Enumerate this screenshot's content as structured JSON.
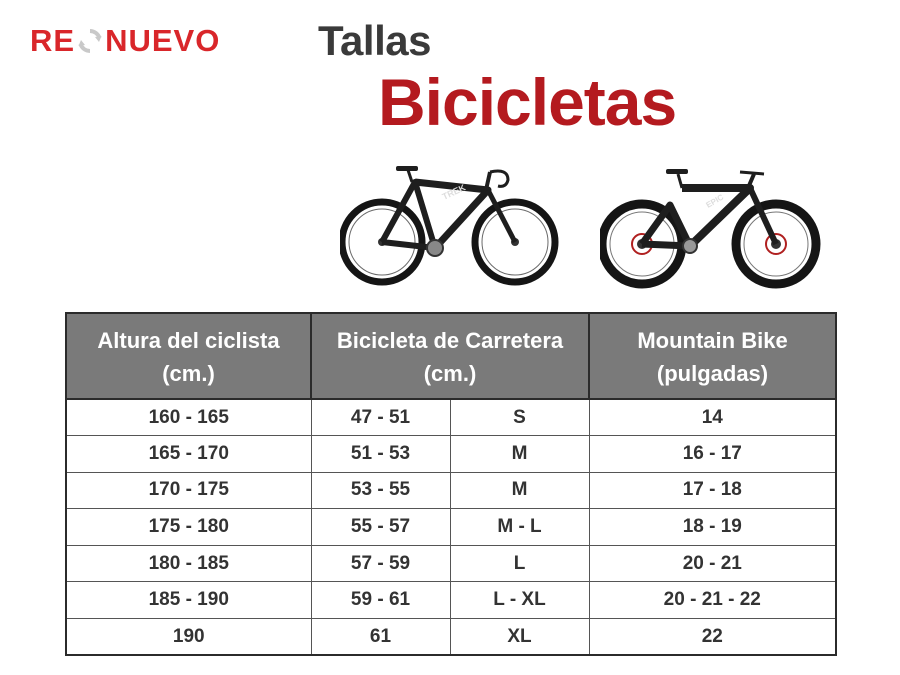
{
  "brand": {
    "logo_left": "RE",
    "logo_right": "NUEVO",
    "logo_icon": "recycle-icon",
    "logo_color": "#d9262a"
  },
  "titles": {
    "small": "Tallas",
    "big": "Bicicletas",
    "small_color": "#3a3a3a",
    "big_color": "#b41a1f"
  },
  "images": {
    "road_bike": "road-bike-photo",
    "mountain_bike": "mountain-bike-photo"
  },
  "table": {
    "headers": {
      "height_line1": "Altura del ciclista",
      "height_line2": "(cm.)",
      "road_line1": "Bicicleta de Carretera",
      "road_line2": "(cm.)",
      "mtb_line1": "Mountain Bike",
      "mtb_line2": "(pulgadas)"
    },
    "header_color": "#7a7a7a",
    "rows": [
      {
        "height": "160 - 165",
        "road_cm": "47 - 51",
        "road_size": "S",
        "mtb_in": "14"
      },
      {
        "height": "165 - 170",
        "road_cm": "51 - 53",
        "road_size": "M",
        "mtb_in": "16 - 17"
      },
      {
        "height": "170 - 175",
        "road_cm": "53 - 55",
        "road_size": "M",
        "mtb_in": "17 - 18"
      },
      {
        "height": "175 - 180",
        "road_cm": "55 - 57",
        "road_size": "M - L",
        "mtb_in": "18 - 19"
      },
      {
        "height": "180 - 185",
        "road_cm": "57 - 59",
        "road_size": "L",
        "mtb_in": "20 - 21"
      },
      {
        "height": "185 - 190",
        "road_cm": "59 - 61",
        "road_size": "L - XL",
        "mtb_in": "20 - 21 - 22"
      },
      {
        "height": "190",
        "road_cm": "61",
        "road_size": "XL",
        "mtb_in": "22"
      }
    ]
  }
}
